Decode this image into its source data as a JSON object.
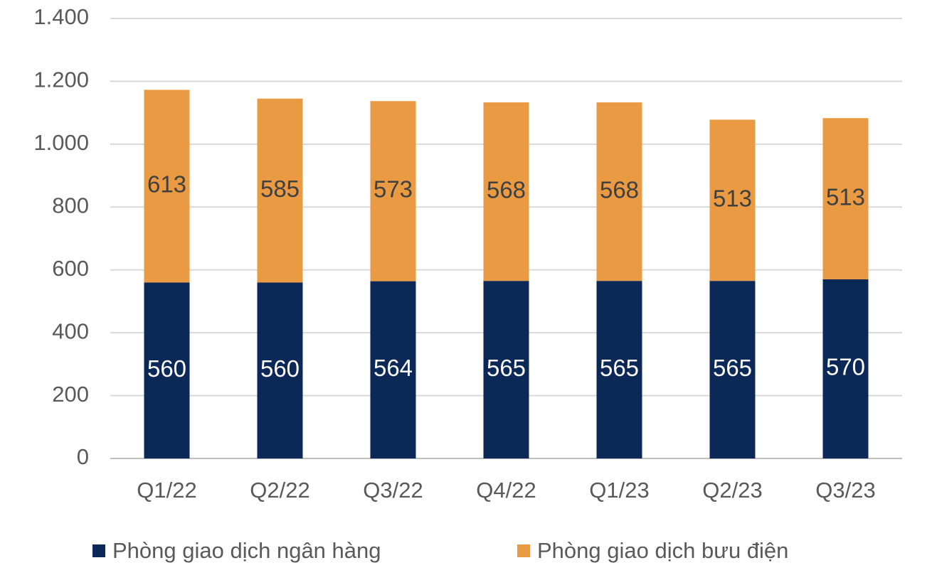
{
  "chart_data": {
    "type": "stacked_bar",
    "categories": [
      "Q1/22",
      "Q2/22",
      "Q3/22",
      "Q4/22",
      "Q1/23",
      "Q2/23",
      "Q3/23"
    ],
    "series": [
      {
        "name": "Phòng giao dịch ngân hàng",
        "color": "#0c2857",
        "label_color": "#ffffff",
        "values": [
          560,
          560,
          564,
          565,
          565,
          565,
          570
        ]
      },
      {
        "name": "Phòng giao dịch bưu điện",
        "color": "#e99a43",
        "label_color": "#404040",
        "values": [
          613,
          585,
          573,
          568,
          568,
          513,
          513
        ]
      }
    ],
    "ylim": [
      0,
      1400
    ],
    "yticks": [
      0,
      200,
      400,
      600,
      800,
      {
        "value": 1000,
        "label": "1.000"
      },
      {
        "value": 1200,
        "label": "1.200"
      },
      {
        "value": 1400,
        "label": "1.400"
      }
    ],
    "grid": true,
    "legend": "bottom"
  }
}
